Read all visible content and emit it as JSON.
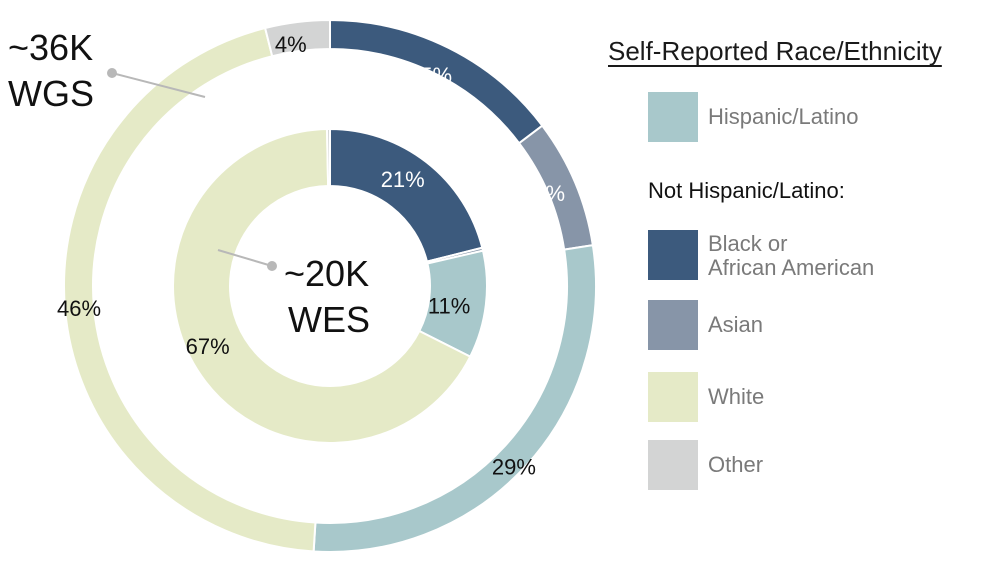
{
  "chart_data": {
    "type": "pie",
    "legend": {
      "title": "Self-Reported Race/Ethnicity",
      "subheading": "Not Hispanic/Latino:",
      "placement": "right"
    },
    "categories": [
      {
        "key": "black",
        "label": "Black or\nAfrican American",
        "color": "#3c5a7d",
        "label_color": "#ffffff"
      },
      {
        "key": "asian",
        "label": "Asian",
        "color": "#8795a8",
        "label_color": "#ffffff"
      },
      {
        "key": "hispanic",
        "label": "Hispanic/Latino",
        "color": "#a8c8cb",
        "label_color": "#111111"
      },
      {
        "key": "white",
        "label": "White",
        "color": "#e5eac7",
        "label_color": "#111111"
      },
      {
        "key": "other",
        "label": "Other",
        "color": "#d3d4d4",
        "label_color": "#111111"
      }
    ],
    "legend_order": [
      "hispanic",
      "black",
      "asian",
      "white",
      "other"
    ],
    "series": [
      {
        "name_line1": "~36K",
        "name_line2": "WGS",
        "ring": "outer",
        "values": {
          "black": 15,
          "asian": 8,
          "hispanic": 29,
          "white": 46,
          "other": 4
        },
        "labels": {
          "black": "15%",
          "asian": "8%",
          "hispanic": "29%",
          "white": "46%",
          "other": "4%"
        }
      },
      {
        "name_line1": "~20K",
        "name_line2": "WES",
        "ring": "inner",
        "values": {
          "black": 21,
          "asian": 0.3,
          "hispanic": 11,
          "white": 67,
          "other": 0.3
        },
        "labels": {
          "black": "21%",
          "asian": "",
          "hispanic": "11%",
          "white": "67%",
          "other": ""
        }
      }
    ]
  }
}
